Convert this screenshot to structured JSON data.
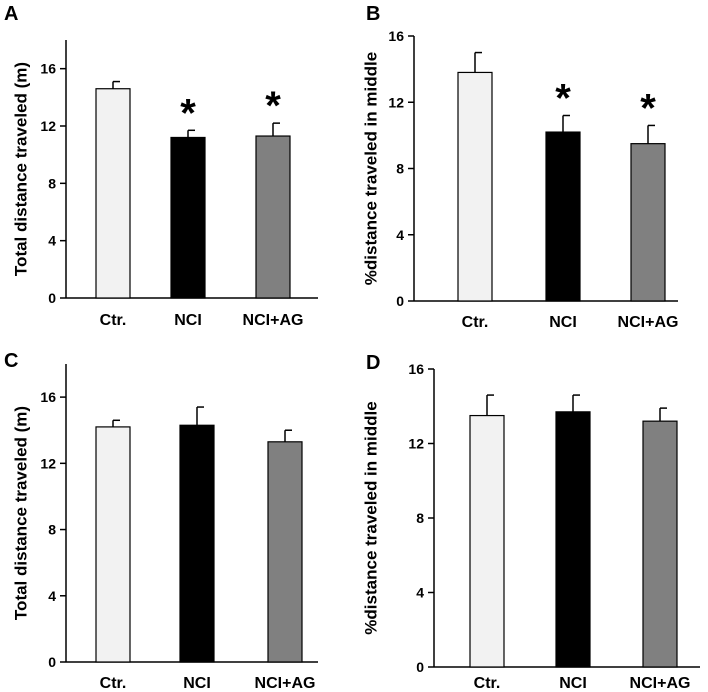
{
  "chart_data": [
    {
      "panel": "A",
      "type": "bar",
      "categories": [
        "Ctr.",
        "NCI",
        "NCI+AG"
      ],
      "values": [
        14.6,
        11.2,
        11.3
      ],
      "errors": [
        0.5,
        0.5,
        0.9
      ],
      "significance": [
        "",
        "*",
        "*"
      ],
      "bar_colors": [
        "#f2f2f2",
        "#000000",
        "#808080"
      ],
      "ylabel": "Total distance traveled (m)",
      "ylim": [
        0,
        18
      ],
      "yticks": [
        0,
        4,
        8,
        12,
        16
      ],
      "ytick_labels": [
        "0",
        "4",
        "8",
        "12",
        "16"
      ]
    },
    {
      "panel": "B",
      "type": "bar",
      "categories": [
        "Ctr.",
        "NCI",
        "NCI+AG"
      ],
      "values": [
        13.8,
        10.2,
        9.5
      ],
      "errors": [
        1.2,
        1.0,
        1.1
      ],
      "significance": [
        "",
        "*",
        "*"
      ],
      "bar_colors": [
        "#f2f2f2",
        "#000000",
        "#808080"
      ],
      "ylabel": "%distance traveled in middle",
      "ylim": [
        0,
        16
      ],
      "yticks": [
        0,
        4,
        8,
        12,
        16
      ],
      "ytick_labels": [
        "0",
        "4",
        "8",
        "12",
        "16"
      ]
    },
    {
      "panel": "C",
      "type": "bar",
      "categories": [
        "Ctr.",
        "NCI",
        "NCI+AG"
      ],
      "values": [
        14.2,
        14.3,
        13.3
      ],
      "errors": [
        0.4,
        1.1,
        0.7
      ],
      "significance": [
        "",
        "",
        ""
      ],
      "bar_colors": [
        "#f2f2f2",
        "#000000",
        "#808080"
      ],
      "ylabel": "Total distance traveled (m)",
      "ylim": [
        0,
        18
      ],
      "yticks": [
        0,
        4,
        8,
        12,
        16
      ],
      "ytick_labels": [
        "0",
        "4",
        "8",
        "12",
        "16"
      ]
    },
    {
      "panel": "D",
      "type": "bar",
      "categories": [
        "Ctr.",
        "NCI",
        "NCI+AG"
      ],
      "values": [
        13.5,
        13.7,
        13.2
      ],
      "errors": [
        1.1,
        0.9,
        0.7
      ],
      "significance": [
        "",
        "",
        ""
      ],
      "bar_colors": [
        "#f2f2f2",
        "#000000",
        "#808080"
      ],
      "ylabel": "%distance traveled in middle",
      "ylim": [
        0,
        16
      ],
      "yticks": [
        0,
        4,
        8,
        12,
        16
      ],
      "ytick_labels": [
        "0",
        "4",
        "8",
        "12",
        "16"
      ]
    }
  ]
}
